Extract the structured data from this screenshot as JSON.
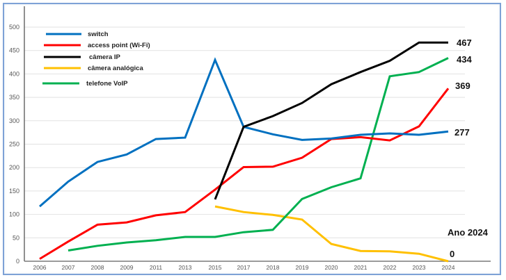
{
  "chart_data": {
    "type": "line",
    "title": "",
    "xlabel": "",
    "ylabel": "",
    "ylim": [
      0,
      500
    ],
    "yticks": [
      0,
      50,
      100,
      150,
      200,
      250,
      300,
      350,
      400,
      450,
      500
    ],
    "grid": true,
    "legend_position": "upper-left",
    "categories": [
      "2006",
      "2007",
      "2008",
      "2009",
      "2011",
      "2013",
      "2015",
      "2017",
      "2018",
      "2019",
      "2020",
      "2021",
      "2022",
      "2023",
      "2024"
    ],
    "series": [
      {
        "name": "switch",
        "color": "#0070c0",
        "values": [
          117,
          170,
          212,
          228,
          261,
          264,
          430,
          287,
          271,
          259,
          262,
          270,
          273,
          270,
          277
        ]
      },
      {
        "name": "access point (Wi-Fi)",
        "color": "#ff0000",
        "values": [
          5,
          42,
          78,
          83,
          98,
          105,
          153,
          201,
          202,
          221,
          261,
          265,
          258,
          288,
          369
        ]
      },
      {
        "name": "câmera IP",
        "color": "#000000",
        "values": [
          null,
          null,
          null,
          null,
          null,
          null,
          132,
          287,
          310,
          338,
          378,
          404,
          428,
          467,
          467
        ]
      },
      {
        "name": "câmera analógica",
        "color": "#ffc000",
        "values": [
          null,
          null,
          null,
          null,
          null,
          null,
          117,
          105,
          99,
          89,
          37,
          22,
          21,
          16,
          0
        ]
      },
      {
        "name": "telefone VoIP",
        "color": "#00b050",
        "values": [
          null,
          23,
          33,
          40,
          45,
          52,
          52,
          62,
          67,
          133,
          158,
          177,
          395,
          404,
          434
        ]
      }
    ],
    "annotations": [
      {
        "text": "467",
        "series": "câmera IP",
        "x": "2024"
      },
      {
        "text": "434",
        "series": "telefone VoIP",
        "x": "2024"
      },
      {
        "text": "369",
        "series": "access point (Wi-Fi)",
        "x": "2024"
      },
      {
        "text": "277",
        "series": "switch",
        "x": "2024"
      },
      {
        "text": "Ano 2024",
        "x": "2024"
      },
      {
        "text": "0",
        "series": "câmera analógica",
        "x": "2024"
      }
    ]
  },
  "labels": {
    "year_note": "Ano 2024"
  }
}
